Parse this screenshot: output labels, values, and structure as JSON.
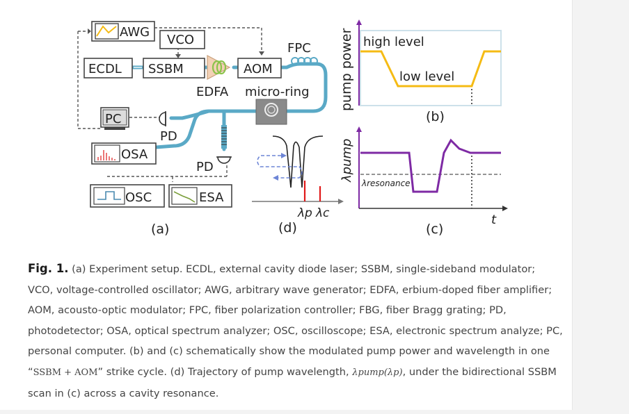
{
  "figure": {
    "panels": {
      "a": {
        "devices": {
          "awg": "AWG",
          "vco": "VCO",
          "ecdl": "ECDL",
          "ssbm": "SSBM",
          "aom": "AOM",
          "fpc": "FPC",
          "edfa": "EDFA",
          "micro_ring": "micro-ring",
          "pc": "PC",
          "pd_top": "PD",
          "osa": "OSA",
          "pd_mid": "PD",
          "osc": "OSC",
          "esa": "ESA"
        },
        "label": "(a)"
      },
      "b": {
        "ylabel": "pump power",
        "high": "high level",
        "low": "low level",
        "label": "(b)"
      },
      "c": {
        "ylabel": "λpump",
        "resonance": "λresonance",
        "xlabel": "t",
        "label": "(c)"
      },
      "d": {
        "lp": "λp",
        "lc": "λc",
        "label": "(d)"
      }
    },
    "colors": {
      "blue_line": "#5aa9c6",
      "box_border": "#444444",
      "orange": "#f5bb14",
      "purple": "#7e2aa4",
      "red_marker": "#e01818",
      "edfa_fill": "#f3d1b6"
    }
  },
  "caption": {
    "lead": "Fig. 1.",
    "part1": " (a) Experiment setup. ECDL, external cavity diode laser; SSBM, single-sideband modulator; VCO, voltage-controlled oscillator; AWG, arbitrary wave generator; EDFA, erbium-doped fiber amplifier; AOM, acousto-optic modulator; FPC, fiber polarization controller; FBG, fiber Bragg grating; PD, photodetector; OSA, optical spectrum analyzer; OSC, oscilloscope; ESA, electronic spectrum analyze; PC, personal computer. (b) and (c) schematically show the modulated pump power and wavelength in one “",
    "math": "SSBM + AOM",
    "part2": "” strike cycle. (d) Trajectory of pump wavelength, ",
    "math2": "λpump(λp)",
    "part3": ", under the bidirectional SSBM scan in (c) across a cavity resonance."
  }
}
